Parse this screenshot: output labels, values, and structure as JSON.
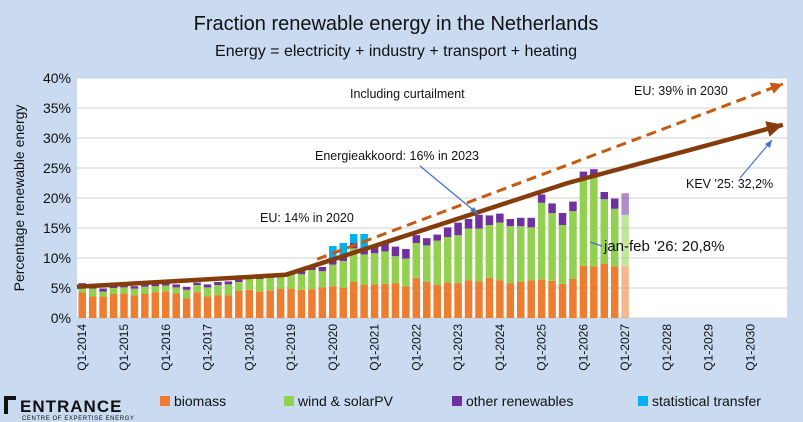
{
  "chart_data": {
    "type": "bar",
    "title": "Fraction renewable energy in the Netherlands",
    "subtitle": "Energy = electricity + industry + transport + heating",
    "ylabel": "Percentage renewable energy",
    "xlabel": "",
    "ylim": [
      0,
      40
    ],
    "yticks": [
      "0%",
      "5%",
      "10%",
      "15%",
      "20%",
      "25%",
      "30%",
      "35%",
      "40%"
    ],
    "x_tick_labels": [
      "Q1-2014",
      "Q1-2015",
      "Q1-2016",
      "Q1-2017",
      "Q1-2018",
      "Q1-2019",
      "Q1-2020",
      "Q1-2021",
      "Q1-2022",
      "Q1-2023",
      "Q1-2024",
      "Q1-2025",
      "Q1-2026",
      "Q1-2027",
      "Q1-2028",
      "Q1-2029",
      "Q1-2030"
    ],
    "bars_per_year": 4,
    "series": [
      {
        "name": "biomass",
        "color": "#ed7d31",
        "values": [
          4.3,
          3.6,
          3.6,
          4.0,
          4.1,
          3.8,
          4.0,
          4.3,
          4.4,
          4.1,
          3.3,
          4.3,
          3.6,
          3.8,
          3.8,
          4.5,
          4.7,
          4.4,
          4.6,
          4.9,
          4.9,
          4.7,
          4.8,
          5.1,
          5.3,
          5.0,
          6.0,
          5.5,
          5.6,
          5.7,
          5.8,
          5.3,
          6.7,
          6.0,
          5.5,
          5.9,
          5.8,
          6.3,
          6.1,
          6.7,
          6.3,
          5.8,
          6.0,
          6.3,
          6.4,
          6.2,
          5.7,
          6.5,
          8.7,
          8.6,
          9.0,
          8.6,
          8.6
        ]
      },
      {
        "name": "wind & solarPV",
        "color": "#92d050",
        "values": [
          1.0,
          1.3,
          0.8,
          1.0,
          1.0,
          1.1,
          1.2,
          1.0,
          1.0,
          1.0,
          1.4,
          1.2,
          1.5,
          1.7,
          1.8,
          1.5,
          1.9,
          2.1,
          2.3,
          1.9,
          2.3,
          2.6,
          3.2,
          2.7,
          3.6,
          4.5,
          5.6,
          5.1,
          5.2,
          5.4,
          4.5,
          4.6,
          5.8,
          6.1,
          7.4,
          7.6,
          8.0,
          8.6,
          8.8,
          8.8,
          9.6,
          9.5,
          9.3,
          8.8,
          12.8,
          11.3,
          9.8,
          11.3,
          14.4,
          14.8,
          10.8,
          9.6,
          8.6
        ]
      },
      {
        "name": "other renewables",
        "color": "#7030a0",
        "values": [
          0.5,
          0.4,
          0.5,
          0.4,
          0.4,
          0.4,
          0.5,
          0.4,
          0.4,
          0.5,
          0.5,
          0.4,
          0.5,
          0.5,
          0.5,
          0.4,
          0.5,
          0.5,
          0.5,
          0.5,
          0.5,
          0.5,
          0.6,
          0.7,
          0.6,
          0.7,
          0.9,
          1.1,
          1.4,
          1.4,
          1.6,
          1.6,
          1.3,
          1.2,
          1.0,
          1.6,
          2.1,
          1.6,
          2.3,
          1.6,
          1.5,
          1.2,
          1.4,
          1.6,
          1.4,
          1.6,
          2.0,
          1.6,
          1.3,
          1.4,
          1.2,
          1.7,
          3.6
        ]
      },
      {
        "name": "statistical transfer",
        "color": "#00b0f0",
        "values": [
          0,
          0,
          0,
          0,
          0,
          0,
          0,
          0,
          0,
          0,
          0,
          0,
          0,
          0,
          0,
          0,
          0,
          0,
          0,
          0,
          0,
          0,
          0,
          0,
          2.5,
          2.3,
          1.5,
          2.3,
          0,
          0,
          0,
          0,
          0,
          0,
          0,
          0,
          0,
          0,
          0,
          0,
          0,
          0,
          0,
          0,
          0,
          0,
          0,
          0,
          0,
          0,
          0,
          0,
          0
        ]
      }
    ],
    "highlight_last_bar": "jan-feb '26: 20,8%",
    "trend_lines": [
      {
        "name": "actual trend",
        "points": [
          [
            2014,
            5.2
          ],
          [
            2019,
            7.2
          ],
          [
            2025.75,
            22.5
          ],
          [
            2030.9,
            32.2
          ]
        ],
        "color": "#843c0c",
        "style": "solid"
      },
      {
        "name": "EU target trend",
        "points": [
          [
            2019.75,
            9.8
          ],
          [
            2030.9,
            39.0
          ]
        ],
        "color": "#c55a11",
        "style": "dashed"
      }
    ],
    "annotations": {
      "curtailment": "Including curtailment",
      "eu2020": "EU: 14% in 2020",
      "energieakkoord": "Energieakkoord: 16% in 2023",
      "eu2030": "EU: 39% in 2030",
      "kev": "KEV '25: 32,2%",
      "janfeb": "jan-feb '26: 20,8%"
    },
    "legend": [
      "biomass",
      "wind & solarPV",
      "other renewables",
      "statistical transfer"
    ],
    "legend_position": "bottom"
  },
  "logo": {
    "name": "ENTRANCE",
    "tagline": "CENTRE OF EXPERTISE ENERGY"
  }
}
